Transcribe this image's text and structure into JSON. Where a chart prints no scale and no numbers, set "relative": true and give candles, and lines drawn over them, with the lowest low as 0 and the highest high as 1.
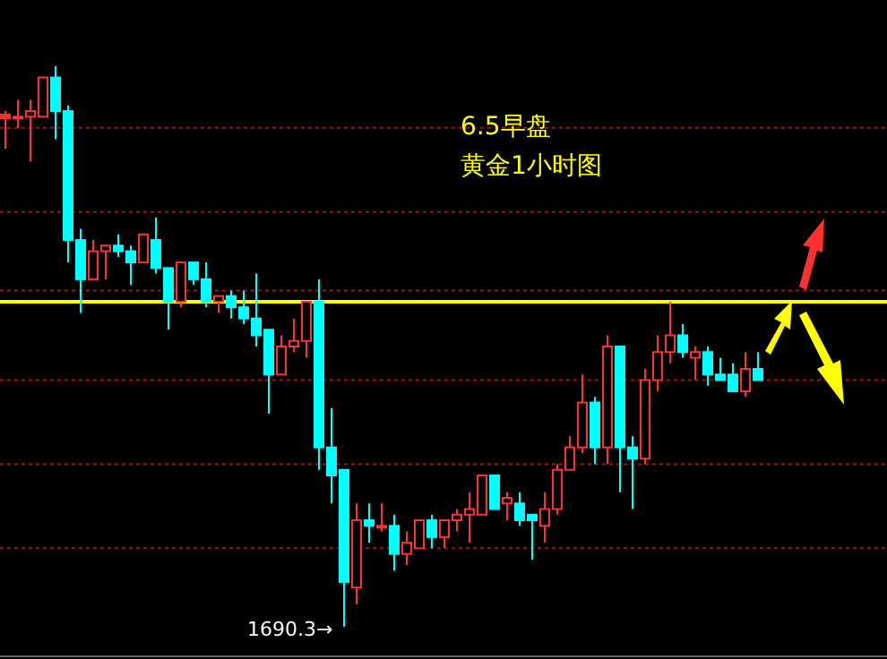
{
  "chart_data": {
    "type": "candlestick",
    "title": "6.5早盘",
    "subtitle": "黄金1小时图",
    "relative": true,
    "categories": [
      null,
      null,
      null,
      null,
      null,
      null,
      null,
      null,
      null,
      null,
      null,
      null,
      null,
      null,
      null,
      null,
      null,
      null,
      null,
      null,
      null,
      null,
      null,
      null,
      null,
      null,
      null,
      null,
      null,
      null,
      null,
      null,
      null,
      null,
      null,
      null,
      null,
      null,
      null,
      null,
      null,
      null,
      null,
      null,
      null,
      null,
      null,
      null,
      null,
      null,
      null,
      null,
      null,
      null,
      null,
      null,
      null,
      null,
      null,
      null,
      null
    ],
    "ohlc": [
      [
        0.907,
        0.92,
        0.853,
        0.914
      ],
      [
        0.91,
        0.94,
        0.89,
        0.91
      ],
      [
        0.91,
        0.94,
        0.83,
        0.92
      ],
      [
        0.91,
        0.98,
        0.91,
        0.98
      ],
      [
        0.98,
        1.0,
        0.87,
        0.92
      ],
      [
        0.92,
        0.93,
        0.65,
        0.69
      ],
      [
        0.69,
        0.71,
        0.56,
        0.62
      ],
      [
        0.62,
        0.69,
        0.62,
        0.67
      ],
      [
        0.67,
        0.68,
        0.62,
        0.68
      ],
      [
        0.68,
        0.7,
        0.66,
        0.67
      ],
      [
        0.67,
        0.68,
        0.61,
        0.65
      ],
      [
        0.65,
        0.7,
        0.65,
        0.7
      ],
      [
        0.69,
        0.73,
        0.63,
        0.64
      ],
      [
        0.64,
        0.64,
        0.53,
        0.58
      ],
      [
        0.58,
        0.65,
        0.57,
        0.65
      ],
      [
        0.65,
        0.65,
        0.61,
        0.62
      ],
      [
        0.62,
        0.65,
        0.57,
        0.58
      ],
      [
        0.58,
        0.59,
        0.56,
        0.59
      ],
      [
        0.59,
        0.6,
        0.55,
        0.57
      ],
      [
        0.57,
        0.6,
        0.54,
        0.55
      ],
      [
        0.55,
        0.63,
        0.5,
        0.52
      ],
      [
        0.53,
        0.53,
        0.38,
        0.45
      ],
      [
        0.45,
        0.52,
        0.45,
        0.5
      ],
      [
        0.5,
        0.55,
        0.49,
        0.51
      ],
      [
        0.51,
        0.58,
        0.48,
        0.58
      ],
      [
        0.58,
        0.62,
        0.28,
        0.32
      ],
      [
        0.32,
        0.39,
        0.22,
        0.27
      ],
      [
        0.28,
        0.28,
        0,
        0.08
      ],
      [
        0.07,
        0.22,
        0.04,
        0.19
      ],
      [
        0.19,
        0.22,
        0.15,
        0.18
      ],
      [
        0.18,
        0.22,
        0.17,
        0.18
      ],
      [
        0.18,
        0.2,
        0.1,
        0.13
      ],
      [
        0.13,
        0.17,
        0.11,
        0.15
      ],
      [
        0.14,
        0.19,
        0.14,
        0.19
      ],
      [
        0.19,
        0.2,
        0.14,
        0.16
      ],
      [
        0.16,
        0.19,
        0.14,
        0.19
      ],
      [
        0.19,
        0.21,
        0.17,
        0.2
      ],
      [
        0.2,
        0.24,
        0.15,
        0.21
      ],
      [
        0.2,
        0.27,
        0.2,
        0.27
      ],
      [
        0.27,
        0.27,
        0.21,
        0.21
      ],
      [
        0.22,
        0.24,
        0.19,
        0.23
      ],
      [
        0.22,
        0.24,
        0.18,
        0.19
      ],
      [
        0.2,
        0.2,
        0.12,
        0.19
      ],
      [
        0.18,
        0.24,
        0.15,
        0.21
      ],
      [
        0.21,
        0.29,
        0.2,
        0.28
      ],
      [
        0.28,
        0.34,
        0.28,
        0.32
      ],
      [
        0.32,
        0.45,
        0.31,
        0.4
      ],
      [
        0.4,
        0.41,
        0.29,
        0.32
      ],
      [
        0.32,
        0.52,
        0.29,
        0.5
      ],
      [
        0.5,
        0.5,
        0.24,
        0.32
      ],
      [
        0.32,
        0.34,
        0.21,
        0.3
      ],
      [
        0.3,
        0.46,
        0.29,
        0.44
      ],
      [
        0.44,
        0.52,
        0.42,
        0.49
      ],
      [
        0.49,
        0.58,
        0.47,
        0.52
      ],
      [
        0.52,
        0.54,
        0.48,
        0.49
      ],
      [
        0.48,
        0.5,
        0.44,
        0.49
      ],
      [
        0.49,
        0.5,
        0.43,
        0.45
      ],
      [
        0.45,
        0.48,
        0.44,
        0.44
      ],
      [
        0.45,
        0.47,
        0.42,
        0.42
      ],
      [
        0.42,
        0.49,
        0.41,
        0.46
      ],
      [
        0.46,
        0.49,
        0.44,
        0.44
      ]
    ],
    "colors": [
      "#ff3232",
      "#ff3232",
      "#ff3232",
      "#ff3232",
      "#00ffff",
      "#00ffff",
      "#00ffff",
      "#ff3232",
      "#ff3232",
      "#00ffff",
      "#00ffff",
      "#ff3232",
      "#00ffff",
      "#00ffff",
      "#ff3232",
      "#00ffff",
      "#00ffff",
      "#ff3232",
      "#00ffff",
      "#00ffff",
      "#00ffff",
      "#00ffff",
      "#ff3232",
      "#ff3232",
      "#ff3232",
      "#00ffff",
      "#00ffff",
      "#00ffff",
      "#ff3232",
      "#00ffff",
      "#ff3232",
      "#00ffff",
      "#ff3232",
      "#ff3232",
      "#00ffff",
      "#ff3232",
      "#ff3232",
      "#ff3232",
      "#ff3232",
      "#00ffff",
      "#ff3232",
      "#00ffff",
      "#00ffff",
      "#ff3232",
      "#ff3232",
      "#ff3232",
      "#ff3232",
      "#00ffff",
      "#ff3232",
      "#00ffff",
      "#00ffff",
      "#ff3232",
      "#ff3232",
      "#ff3232",
      "#00ffff",
      "#ff3232",
      "#00ffff",
      "#00ffff",
      "#00ffff",
      "#ff3232",
      "#00ffff"
    ],
    "ref_lines": [
      {
        "axis": "y",
        "value": 0.58,
        "color": "#ffff00",
        "line_style": "solid"
      },
      {
        "axis": "y",
        "value": 0.89,
        "color": "#a01010",
        "line_style": "dotted"
      },
      {
        "axis": "y",
        "value": 0.74,
        "color": "#a01010",
        "line_style": "dotted"
      },
      {
        "axis": "y",
        "value": 0.6,
        "color": "#a01010",
        "line_style": "dotted"
      },
      {
        "axis": "y",
        "value": 0.44,
        "color": "#a01010",
        "line_style": "dotted"
      },
      {
        "axis": "y",
        "value": 0.29,
        "color": "#a01010",
        "line_style": "dotted"
      },
      {
        "axis": "y",
        "value": 0.14,
        "color": "#a01010",
        "line_style": "dotted"
      }
    ],
    "annotations": [
      "1690.3→"
    ]
  }
}
